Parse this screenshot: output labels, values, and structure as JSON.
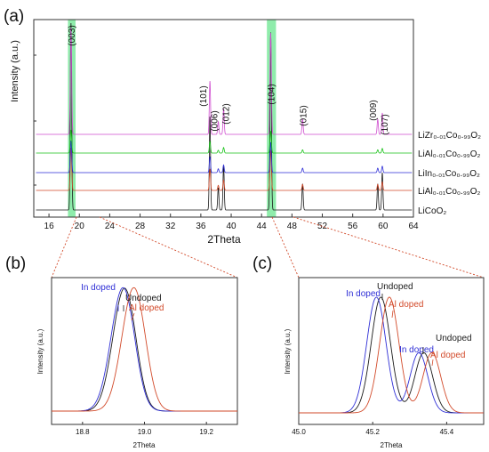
{
  "panels": {
    "a": "(a)",
    "b": "(b)",
    "c": "(c)"
  },
  "colors": {
    "black": "#1a1a1a",
    "red": "#d24a2a",
    "blue": "#2f2fd6",
    "green": "#19c219",
    "magenta": "#d04fd0",
    "highlight": "#33dd66",
    "guide": "#d24a2a"
  },
  "chart_data": [
    {
      "id": "a",
      "type": "line",
      "xlabel": "2Theta",
      "ylabel": "Intensity (a.u.)",
      "xlim": [
        14,
        64
      ],
      "x_ticks": [
        16,
        20,
        24,
        28,
        32,
        36,
        40,
        44,
        48,
        52,
        56,
        60,
        64
      ],
      "highlight_bands": [
        [
          18.5,
          19.5
        ],
        [
          44.7,
          45.9
        ]
      ],
      "peak_labels": [
        {
          "text": "(003)",
          "x": 18.9
        },
        {
          "text": "(101)",
          "x": 37.2
        },
        {
          "text": "(006)",
          "x": 38.2
        },
        {
          "text": "(012)",
          "x": 39.0
        },
        {
          "text": "(104)",
          "x": 45.2
        },
        {
          "text": "(015)",
          "x": 49.4
        },
        {
          "text": "(009)",
          "x": 59.3
        },
        {
          "text": "(107)",
          "x": 59.9
        }
      ],
      "series": [
        {
          "name": "LiCoO₂",
          "color": "black"
        },
        {
          "name": "LiAl₀.₀₁Co₀.₉₉O₂",
          "color": "red"
        },
        {
          "name": "LiIn₀.₀₁Co₀.₉₉O₂",
          "color": "blue"
        },
        {
          "name": "LiAl₀.₀₁Co₀.₉₉O₂",
          "color": "green"
        },
        {
          "name": "LiZr₀.₀₁Co₀.₉₉O₂",
          "color": "magenta"
        }
      ],
      "peaks": [
        {
          "x": 18.9,
          "h": 1.0,
          "w": 0.09
        },
        {
          "x": 37.2,
          "h": 0.5,
          "w": 0.08
        },
        {
          "x": 38.3,
          "h": 0.12,
          "w": 0.08
        },
        {
          "x": 39.0,
          "h": 0.24,
          "w": 0.08
        },
        {
          "x": 45.2,
          "h": 0.95,
          "w": 0.09
        },
        {
          "x": 49.4,
          "h": 0.14,
          "w": 0.08
        },
        {
          "x": 59.3,
          "h": 0.14,
          "w": 0.08
        },
        {
          "x": 59.9,
          "h": 0.2,
          "w": 0.08
        }
      ]
    },
    {
      "id": "b",
      "type": "line",
      "xlabel": "2Theta",
      "ylabel": "Intensity (a.u.)",
      "xlim": [
        18.7,
        19.3
      ],
      "x_ticks": [
        18.8,
        19.0,
        19.2
      ],
      "series": [
        {
          "name": "Undoped",
          "color": "black",
          "center": 18.925,
          "width": 0.035
        },
        {
          "name": "In doped",
          "color": "blue",
          "center": 18.92,
          "width": 0.036
        },
        {
          "name": "Al doped",
          "color": "red",
          "center": 18.955,
          "width": 0.036
        }
      ],
      "annotations": [
        {
          "text": "In doped",
          "color": "blue"
        },
        {
          "text": "Undoped",
          "color": "black"
        },
        {
          "text": "Al doped",
          "color": "red"
        }
      ]
    },
    {
      "id": "c",
      "type": "line",
      "xlabel": "2Theta",
      "ylabel": "Intensity (a.u.)",
      "xlim": [
        45.0,
        45.5
      ],
      "x_ticks": [
        45.0,
        45.2,
        45.4
      ],
      "series": [
        {
          "name": "Undoped",
          "color": "black",
          "center1": 45.222,
          "center2": 45.338
        },
        {
          "name": "In doped",
          "color": "blue",
          "center1": 45.21,
          "center2": 45.325
        },
        {
          "name": "Al doped",
          "color": "red",
          "center1": 45.245,
          "center2": 45.36
        }
      ],
      "annotations": [
        {
          "text": "In doped",
          "color": "blue"
        },
        {
          "text": "Undoped",
          "color": "black"
        },
        {
          "text": "Al doped",
          "color": "red"
        },
        {
          "text": "In doped",
          "color": "blue"
        },
        {
          "text": "Undoped",
          "color": "black"
        },
        {
          "text": "Al doped",
          "color": "red"
        }
      ]
    }
  ]
}
